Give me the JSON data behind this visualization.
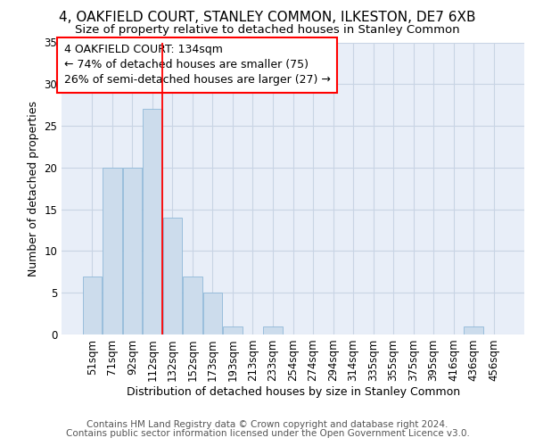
{
  "title_line1": "4, OAKFIELD COURT, STANLEY COMMON, ILKESTON, DE7 6XB",
  "title_line2": "Size of property relative to detached houses in Stanley Common",
  "xlabel": "Distribution of detached houses by size in Stanley Common",
  "ylabel": "Number of detached properties",
  "footer_line1": "Contains HM Land Registry data © Crown copyright and database right 2024.",
  "footer_line2": "Contains public sector information licensed under the Open Government Licence v3.0.",
  "bin_labels": [
    "51sqm",
    "71sqm",
    "92sqm",
    "112sqm",
    "132sqm",
    "152sqm",
    "173sqm",
    "193sqm",
    "213sqm",
    "233sqm",
    "254sqm",
    "274sqm",
    "294sqm",
    "314sqm",
    "335sqm",
    "355sqm",
    "375sqm",
    "395sqm",
    "416sqm",
    "436sqm",
    "456sqm"
  ],
  "bar_values": [
    7,
    20,
    20,
    27,
    14,
    7,
    5,
    1,
    0,
    1,
    0,
    0,
    0,
    0,
    0,
    0,
    0,
    0,
    0,
    1,
    0
  ],
  "bar_color": "#ccdcec",
  "bar_edge_color": "#8fb8d8",
  "red_line_index": 4,
  "annotation_text": "4 OAKFIELD COURT: 134sqm\n← 74% of detached houses are smaller (75)\n26% of semi-detached houses are larger (27) →",
  "annotation_box_color": "white",
  "annotation_box_edge": "red",
  "ylim": [
    0,
    35
  ],
  "yticks": [
    0,
    5,
    10,
    15,
    20,
    25,
    30,
    35
  ],
  "grid_color": "#c8d4e4",
  "bg_color": "#e8eef8",
  "title_fontsize": 11,
  "subtitle_fontsize": 9.5,
  "axis_label_fontsize": 9,
  "tick_fontsize": 8.5,
  "annotation_fontsize": 9,
  "footer_fontsize": 7.5
}
